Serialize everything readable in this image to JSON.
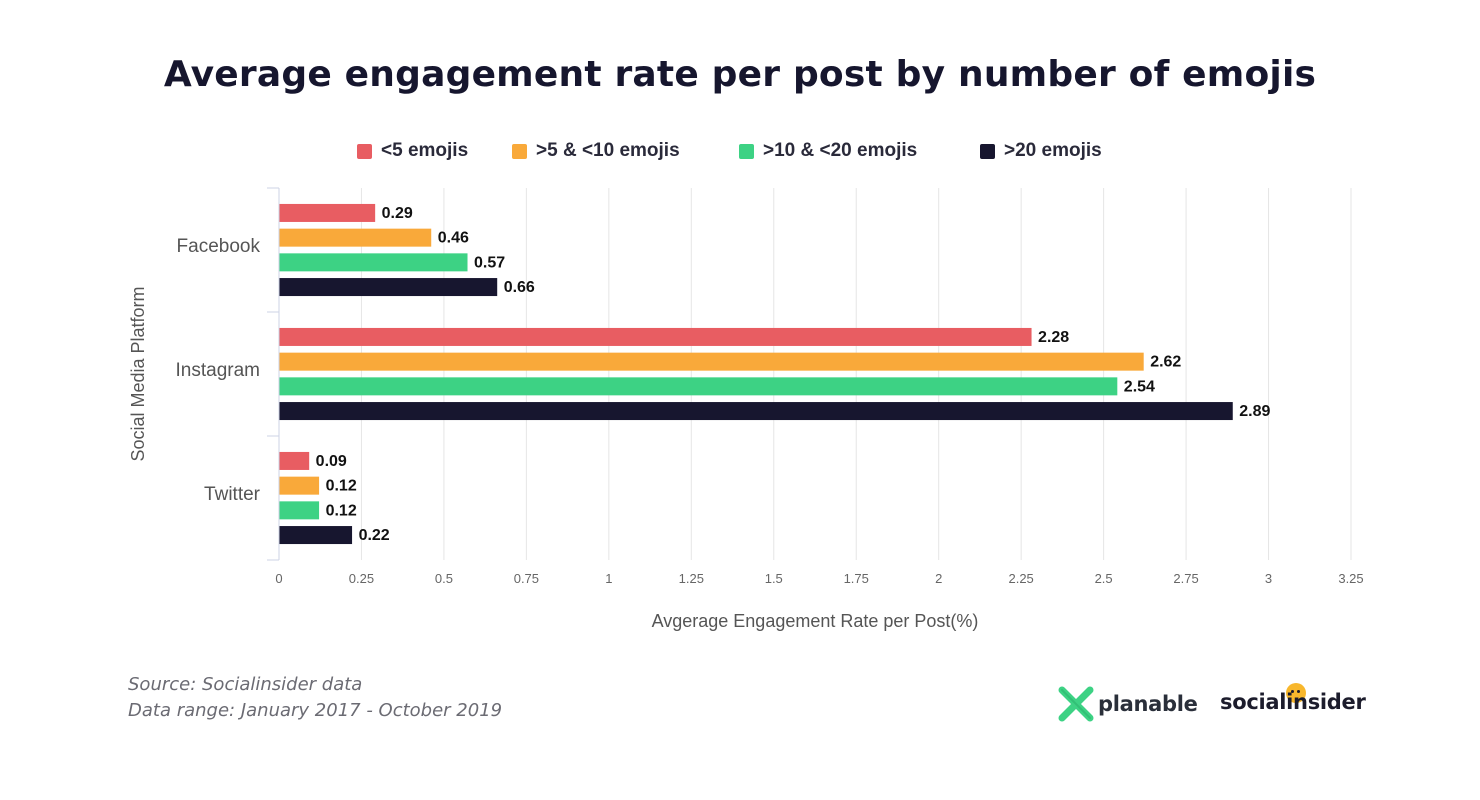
{
  "chart_data": {
    "type": "bar",
    "orientation": "horizontal",
    "title": "Average engagement rate per post by number of emojis",
    "xlabel": "Avgerage Engagement Rate per Post(%)",
    "ylabel": "Social Media Platform",
    "xlim": [
      0,
      3.25
    ],
    "xticks": [
      "0",
      "0.25",
      "0.5",
      "0.75",
      "1",
      "1.25",
      "1.5",
      "1.75",
      "2",
      "2.25",
      "2.5",
      "2.75",
      "3",
      "3.25"
    ],
    "grid": true,
    "legend_position": "top",
    "categories": [
      "Facebook",
      "Instagram",
      "Twitter"
    ],
    "series": [
      {
        "name": "<5 emojis",
        "color": "#e85d62",
        "values": [
          0.29,
          2.28,
          0.09
        ],
        "labels": [
          "0.29",
          "2.28",
          "0.09"
        ]
      },
      {
        "name": ">5 & <10 emojis",
        "color": "#f9a93a",
        "values": [
          0.46,
          2.62,
          0.12
        ],
        "labels": [
          "0.46",
          "2.62",
          "0.12"
        ]
      },
      {
        "name": ">10 & <20 emojis",
        "color": "#3dd284",
        "values": [
          0.57,
          2.54,
          0.12
        ],
        "labels": [
          "0.57",
          "2.54",
          "0.12"
        ]
      },
      {
        "name": ">20 emojis",
        "color": "#17162f",
        "values": [
          0.66,
          2.89,
          0.22
        ],
        "labels": [
          "0.66",
          "2.89",
          "0.22"
        ]
      }
    ]
  },
  "footer": {
    "source": "Source: Socialinsider data",
    "range": "Data range: January 2017 - October 2019"
  },
  "logos": {
    "planable": "planable",
    "socialinsider": "socialinsider",
    "planable_color": "#3dd284",
    "socialinsider_accent": "#f8b72c"
  }
}
